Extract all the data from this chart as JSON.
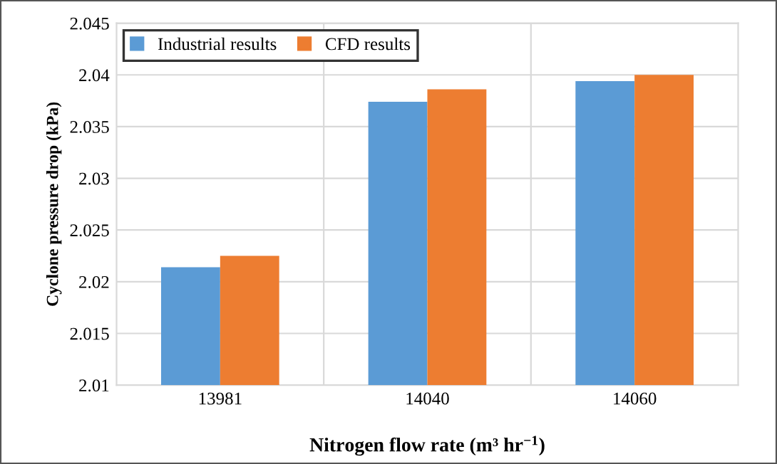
{
  "chart_data": {
    "type": "bar",
    "xlabel": "Nitrogen flow rate (m³ hr$^{−1}$)",
    "ylabel": "Cyclone pressure drop (kPa)",
    "categories": [
      "13981",
      "14040",
      "14060"
    ],
    "series": [
      {
        "name": "Industrial results",
        "color": "#5b9bd5",
        "values": [
          2.0214,
          2.0374,
          2.0394
        ]
      },
      {
        "name": "CFD results",
        "color": "#ed7d31",
        "values": [
          2.0225,
          2.0386,
          2.04
        ]
      }
    ],
    "ylim": [
      2.01,
      2.045
    ],
    "yticks": [
      2.01,
      2.015,
      2.02,
      2.025,
      2.03,
      2.035,
      2.04,
      2.045
    ],
    "grid": true,
    "legend": "top left"
  }
}
